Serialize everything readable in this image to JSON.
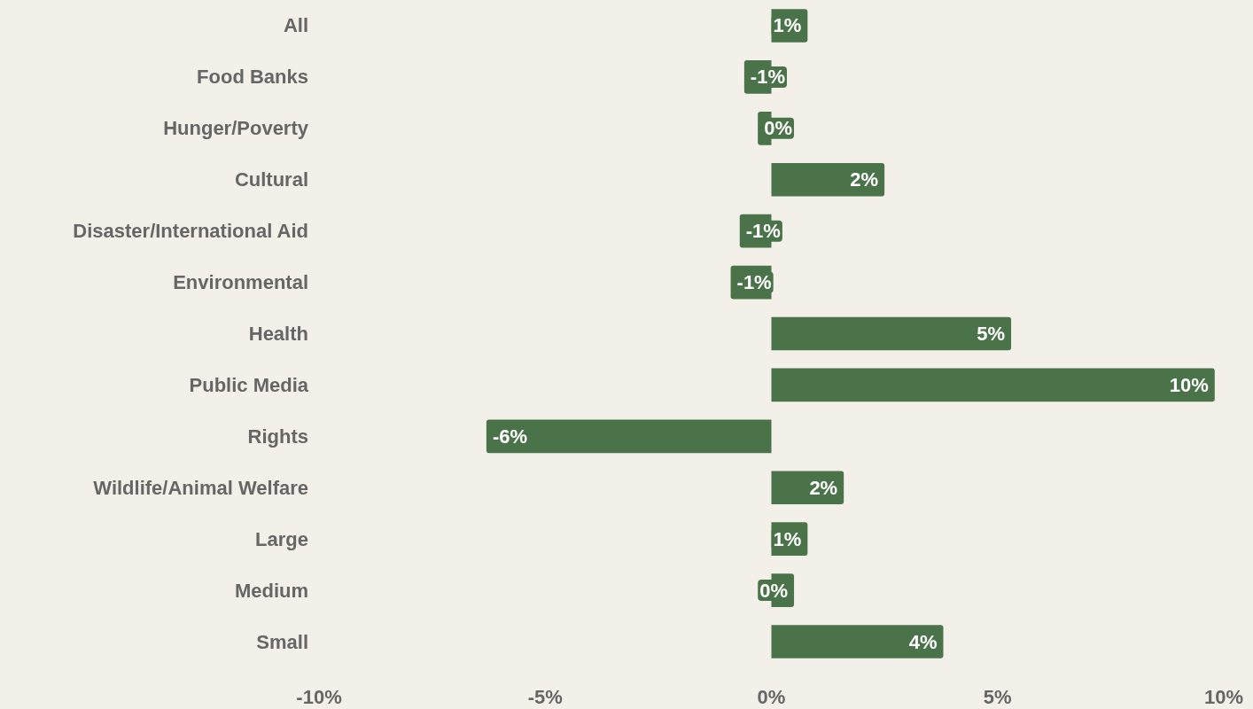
{
  "chart_data": {
    "type": "bar",
    "orientation": "horizontal",
    "categories": [
      "All",
      "Food Banks",
      "Hunger/Poverty",
      "Cultural",
      "Disaster/International Aid",
      "Environmental",
      "Health",
      "Public Media",
      "Rights",
      "Wildlife/Animal Welfare",
      "Large",
      "Medium",
      "Small"
    ],
    "values": [
      0.8,
      -0.6,
      -0.3,
      2.5,
      -0.7,
      -0.9,
      5.3,
      9.8,
      -6.3,
      1.6,
      0.8,
      0.5,
      3.8
    ],
    "value_labels": [
      "1%",
      "-1%",
      "0%",
      "2%",
      "-1%",
      "-1%",
      "5%",
      "10%",
      "-6%",
      "2%",
      "1%",
      "0%",
      "4%"
    ],
    "color": "#4a7349",
    "xlim": [
      -10,
      10
    ],
    "xticks": [
      {
        "value": -10,
        "label": "-10%"
      },
      {
        "value": -5,
        "label": "-5%"
      },
      {
        "value": 0,
        "label": "0%"
      },
      {
        "value": 5,
        "label": "5%"
      },
      {
        "value": 10,
        "label": "10%"
      }
    ]
  }
}
